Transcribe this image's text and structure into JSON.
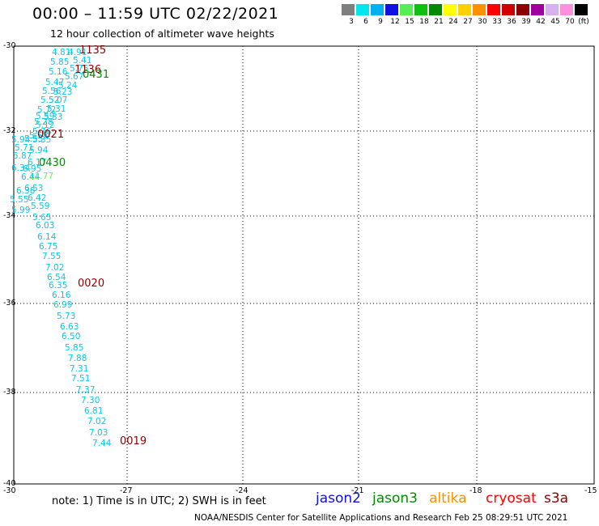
{
  "header": {
    "title": "00:00 – 11:59 UTC 02/22/2021",
    "subtitle": "12 hour collection of altimeter wave heights"
  },
  "scale": {
    "unit": "(ft)",
    "items": [
      {
        "label": "3",
        "color": "#7f7f7f"
      },
      {
        "label": "6",
        "color": "#00e5ee"
      },
      {
        "label": "9",
        "color": "#00b0f0"
      },
      {
        "label": "12",
        "color": "#1010e0"
      },
      {
        "label": "15",
        "color": "#55ee55"
      },
      {
        "label": "18",
        "color": "#10c010"
      },
      {
        "label": "21",
        "color": "#008a00"
      },
      {
        "label": "24",
        "color": "#ffff00"
      },
      {
        "label": "27",
        "color": "#ffd000"
      },
      {
        "label": "30",
        "color": "#ff9000"
      },
      {
        "label": "33",
        "color": "#ff0000"
      },
      {
        "label": "36",
        "color": "#d00000"
      },
      {
        "label": "39",
        "color": "#8b0000"
      },
      {
        "label": "42",
        "color": "#a000a0"
      },
      {
        "label": "45",
        "color": "#d8b0f0"
      },
      {
        "label": "70",
        "color": "#ff90e0"
      },
      {
        "label": "",
        "color": "#000000"
      }
    ]
  },
  "map": {
    "lat_labels": [
      "-30",
      "-32",
      "-34",
      "-36",
      "-38",
      "-40"
    ],
    "lon_labels": [
      "-30",
      "-27",
      "-24",
      "-21",
      "-18",
      "-15"
    ]
  },
  "track_points": [
    {
      "v": "4.81",
      "c": "#00ccee"
    },
    {
      "v": "4.91",
      "c": "#00ccee"
    },
    {
      "v": "5.41",
      "c": "#00ccee"
    },
    {
      "v": "5.85",
      "c": "#00ccee"
    },
    {
      "v": "5.75",
      "c": "#00ccee"
    },
    {
      "v": "5.16",
      "c": "#00ccee"
    },
    {
      "v": "5.67",
      "c": "#00ccee"
    },
    {
      "v": "5.47",
      "c": "#00ccee"
    },
    {
      "v": "5.24",
      "c": "#00ccee"
    },
    {
      "v": "5.56",
      "c": "#00ccee"
    },
    {
      "v": "5.23",
      "c": "#00ccee"
    },
    {
      "v": "5.52",
      "c": "#00ccee"
    },
    {
      "v": "5.07",
      "c": "#00ccee"
    },
    {
      "v": "5.72",
      "c": "#00ccee"
    },
    {
      "v": "5.31",
      "c": "#00ccee"
    },
    {
      "v": "5.59",
      "c": "#00ccee"
    },
    {
      "v": "5.33",
      "c": "#00ccee"
    },
    {
      "v": "5.28",
      "c": "#00ccee"
    },
    {
      "v": "5.12",
      "c": "#00ccee"
    },
    {
      "v": "5.76",
      "c": "#00ccee"
    },
    {
      "v": "5.58",
      "c": "#00ccee"
    },
    {
      "v": "5.55",
      "c": "#00ccee"
    },
    {
      "v": "5.35",
      "c": "#00ccee"
    },
    {
      "v": "5.94",
      "c": "#00ccee"
    },
    {
      "v": "5.71",
      "c": "#00ccee"
    },
    {
      "v": "5.94",
      "c": "#00ccee"
    },
    {
      "v": "5.87",
      "c": "#00ccee"
    },
    {
      "v": "6.17",
      "c": "#00ccee"
    },
    {
      "v": "6.34",
      "c": "#00ccee"
    },
    {
      "v": "6.95",
      "c": "#00ccee"
    },
    {
      "v": "6.44",
      "c": "#00ccee"
    },
    {
      "v": "12.77",
      "c": "#66ee66"
    },
    {
      "v": "6.38",
      "c": "#00ccee"
    },
    {
      "v": "6.53",
      "c": "#00ccee"
    },
    {
      "v": "6.42",
      "c": "#00ccee"
    },
    {
      "v": "5.55",
      "c": "#00ccee"
    },
    {
      "v": "5.59",
      "c": "#00ccee"
    },
    {
      "v": "5.99",
      "c": "#00ccee"
    },
    {
      "v": "5.65",
      "c": "#00ccee"
    },
    {
      "v": "6.03",
      "c": "#00ccee"
    },
    {
      "v": "6.14",
      "c": "#00ccee"
    },
    {
      "v": "6.75",
      "c": "#00ccee"
    },
    {
      "v": "7.55",
      "c": "#00ccee"
    },
    {
      "v": "7.02",
      "c": "#00ccee"
    },
    {
      "v": "6.54",
      "c": "#00ccee"
    },
    {
      "v": "6.35",
      "c": "#00ccee"
    },
    {
      "v": "6.16",
      "c": "#00ccee"
    },
    {
      "v": "6.99",
      "c": "#00ccee"
    },
    {
      "v": "5.73",
      "c": "#00ccee"
    },
    {
      "v": "6.63",
      "c": "#00ccee"
    },
    {
      "v": "6.50",
      "c": "#00ccee"
    },
    {
      "v": "5.85",
      "c": "#00ccee"
    },
    {
      "v": "7.88",
      "c": "#00ccee"
    },
    {
      "v": "7.31",
      "c": "#00ccee"
    },
    {
      "v": "7.51",
      "c": "#00ccee"
    },
    {
      "v": "7.37",
      "c": "#00ccee"
    },
    {
      "v": "7.30",
      "c": "#00ccee"
    },
    {
      "v": "6.81",
      "c": "#00ccee"
    },
    {
      "v": "7.02",
      "c": "#00ccee"
    },
    {
      "v": "7.03",
      "c": "#00ccee"
    },
    {
      "v": "7.44",
      "c": "#00ccee"
    }
  ],
  "time_labels": [
    {
      "t": "1135",
      "c": "#8b0000"
    },
    {
      "t": "1136",
      "c": "#8b0000"
    },
    {
      "t": "0431",
      "c": "#008a00"
    },
    {
      "t": "0021",
      "c": "#8b0000"
    },
    {
      "t": "0430",
      "c": "#008a00"
    },
    {
      "t": "0020",
      "c": "#8b0000"
    },
    {
      "t": "0019",
      "c": "#8b0000"
    }
  ],
  "note": "note: 1) Time is in UTC; 2) SWH is in feet",
  "satellites": [
    {
      "name": "jason2",
      "color": "#1010e0"
    },
    {
      "name": "jason3",
      "color": "#008a00"
    },
    {
      "name": "altika",
      "color": "#ff9000"
    },
    {
      "name": "cryosat",
      "color": "#ff0000"
    },
    {
      "name": "s3a",
      "color": "#8b0000"
    }
  ],
  "footer": "NOAA/NESDIS Center for Satellite Applications and Research    Feb 25 08:29:51 UTC 2021"
}
